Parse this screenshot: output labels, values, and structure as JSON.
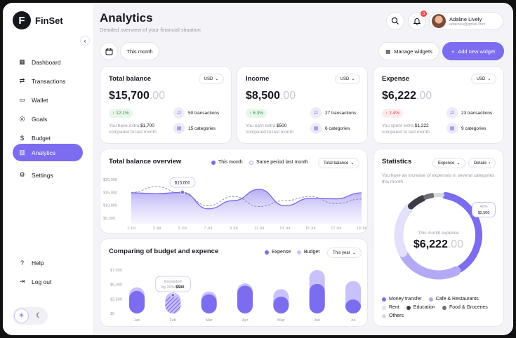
{
  "app": {
    "name": "FinSet",
    "logo_letter": "F"
  },
  "colors": {
    "accent": "#7b6cf0",
    "accent_light": "#c9c1fb",
    "dark": "#16161d"
  },
  "sidebar": {
    "items": [
      {
        "label": "Dashboard",
        "icon": "grid-icon"
      },
      {
        "label": "Transactions",
        "icon": "transfer-icon"
      },
      {
        "label": "Wallet",
        "icon": "wallet-icon"
      },
      {
        "label": "Goals",
        "icon": "target-icon"
      },
      {
        "label": "Budget",
        "icon": "budget-icon"
      },
      {
        "label": "Analytics",
        "icon": "chart-icon"
      },
      {
        "label": "Settings",
        "icon": "gear-icon"
      }
    ],
    "help": "Help",
    "logout": "Log out"
  },
  "header": {
    "title": "Analytics",
    "subtitle": "Detailed overview of your financial situation",
    "notifications": "3",
    "user_name": "Adaline Lively",
    "user_email": "adalinea@gmail.com"
  },
  "toolbar": {
    "period": "This month",
    "manage": "Manage widgets",
    "add": "Add new widget"
  },
  "kpis": [
    {
      "title": "Total balance",
      "currency": "USD",
      "value_main": "$15,700",
      "value_dec": ".00",
      "change": "12.1%",
      "direction": "up",
      "note_prefix": "You have extra ",
      "note_amount": "$1,700",
      "note_suffix": "compared to last month",
      "transactions": "50 transactions",
      "categories": "15 categories"
    },
    {
      "title": "Income",
      "currency": "USD",
      "value_main": "$8,500",
      "value_dec": ".00",
      "change": "6.3%",
      "direction": "up",
      "note_prefix": "You earn extra ",
      "note_amount": "$500",
      "note_suffix": "compared to last month",
      "transactions": "27 transactions",
      "categories": "6 categories"
    },
    {
      "title": "Expense",
      "currency": "USD",
      "value_main": "$6,222",
      "value_dec": ".00",
      "change": "2.4%",
      "direction": "down",
      "note_prefix": "You spent extra ",
      "note_amount": "$1,222",
      "note_suffix": "compared to last month",
      "transactions": "23 transactions",
      "categories": "9 categories"
    }
  ],
  "overview": {
    "title": "Total balance overview",
    "legend_current": "This month",
    "legend_previous": "Same period last month",
    "select": "Total balance",
    "tooltip": "$15,000"
  },
  "budget": {
    "title": "Comparing of budget and expence",
    "legend_expense": "Expense",
    "legend_budget": "Budget",
    "select": "This year",
    "tooltip_line1": "Exceeded",
    "tooltip_line2_prefix": "by 20% ",
    "tooltip_amount": "$500"
  },
  "statistics": {
    "title": "Statistics",
    "select": "Expence",
    "details": "Details",
    "text": "You have an increase of expenses in several categories this month",
    "center_label": "This month expence",
    "center_main": "$6,222",
    "center_dec": ".00",
    "callout_pct": "40%",
    "callout_amount": "$2,500",
    "legend": [
      {
        "label": "Money transfer",
        "color": "#7b6cf0"
      },
      {
        "label": "Cafe & Restaurants",
        "color": "#b3a9f7"
      },
      {
        "label": "Rent",
        "color": "#e3e0fb"
      },
      {
        "label": "Education",
        "color": "#3c3c46"
      },
      {
        "label": "Food & Groceries",
        "color": "#6e6e78"
      },
      {
        "label": "Others",
        "color": "#d9d9df"
      }
    ]
  },
  "chart_data": [
    {
      "type": "area",
      "title": "Total balance overview",
      "categories": [
        "1 Jul",
        "3 Jul",
        "5 Jul",
        "7 Jul",
        "9 Jul",
        "11 Jul",
        "13 Jul",
        "15 Jul",
        "17 Jul",
        "19 Jul"
      ],
      "y_ticks": [
        "$20,000",
        "$15,000",
        "$10,000",
        "$5,000"
      ],
      "ylim": [
        5000,
        20000
      ],
      "series": [
        {
          "name": "This month",
          "values": [
            14800,
            14500,
            15000,
            8600,
            11800,
            16200,
            9800,
            12700,
            12500,
            14800
          ]
        },
        {
          "name": "Same period last month",
          "values": [
            15000,
            17200,
            14500,
            9800,
            13400,
            9500,
            11800,
            13400,
            10600,
            12400
          ]
        }
      ]
    },
    {
      "type": "bar",
      "title": "Comparing of budget and expence",
      "categories": [
        "Jan",
        "Feb",
        "Mar",
        "Apr",
        "May",
        "Jun",
        "Jul"
      ],
      "y_ticks": [
        "$7,500",
        "$5,000",
        "$2,500",
        "$0"
      ],
      "ylim": [
        0,
        7500
      ],
      "series": [
        {
          "name": "Budget",
          "values": [
            4500,
            3600,
            3800,
            5200,
            4200,
            7500,
            5600
          ]
        },
        {
          "name": "Expense",
          "values": [
            3900,
            3000,
            3300,
            4800,
            2900,
            5100,
            2400
          ]
        }
      ]
    },
    {
      "type": "pie",
      "title": "Statistics",
      "categories": [
        "Money transfer",
        "Cafe & Restaurants",
        "Rent",
        "Education",
        "Food & Groceries",
        "Others"
      ],
      "values": [
        40,
        25,
        20,
        7,
        4,
        4
      ]
    }
  ]
}
